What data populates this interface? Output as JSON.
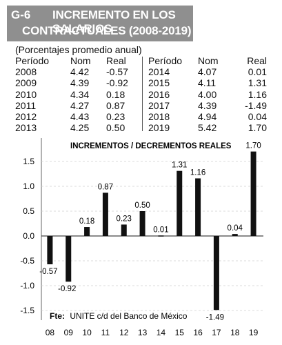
{
  "header": {
    "code": "G-6",
    "title_line1": "INCREMENTO EN LOS SALARIOS",
    "title_line2": "CONTRACTUALES (2008-2019)"
  },
  "subtitle": "(Porcentajes promedio anual)",
  "table": {
    "headers": [
      "Período",
      "Nom",
      "Real"
    ],
    "left_rows": [
      [
        "2008",
        "4.42",
        "-0.57"
      ],
      [
        "2009",
        "4.39",
        "-0.92"
      ],
      [
        "2010",
        "4.34",
        "0.18"
      ],
      [
        "2011",
        "4.27",
        "0.87"
      ],
      [
        "2012",
        "4.43",
        "0.23"
      ],
      [
        "2013",
        "4.25",
        "0.50"
      ]
    ],
    "right_rows": [
      [
        "2014",
        "4.07",
        "0.01"
      ],
      [
        "2015",
        "4.11",
        "1.31"
      ],
      [
        "2016",
        "4.00",
        "1.16"
      ],
      [
        "2017",
        "4.39",
        "-1.49"
      ],
      [
        "2018",
        "4.94",
        "0.04"
      ],
      [
        "2019",
        "5.42",
        "1.70"
      ]
    ]
  },
  "chart_data": {
    "type": "bar",
    "title": "INCREMENTOS / DECREMENTOS REALES",
    "categories": [
      "08",
      "09",
      "10",
      "11",
      "12",
      "13",
      "14",
      "15",
      "16",
      "17",
      "18",
      "19"
    ],
    "values": [
      -0.57,
      -0.92,
      0.18,
      0.87,
      0.23,
      0.5,
      0.01,
      1.31,
      1.16,
      -1.49,
      0.04,
      1.7
    ],
    "value_labels": [
      "-0.57",
      "-0.92",
      "0.18",
      "0.87",
      "0.23",
      "0.50",
      "0.01",
      "1.31",
      "1.16",
      "-1.49",
      "0.04",
      "1.70"
    ],
    "yticks": [
      1.5,
      1.0,
      0.5,
      0.0,
      -0.5,
      -1.0,
      -1.5
    ],
    "ytick_labels": [
      "1.5",
      "1.0",
      "0.5",
      "0.0",
      "-0.5",
      "-1.0",
      "-1.5"
    ],
    "ylim": [
      -1.5,
      1.8
    ],
    "bar_color": "#111111",
    "source_label": "Fte:",
    "source_text": "UNITE c/d del Banco de México"
  }
}
